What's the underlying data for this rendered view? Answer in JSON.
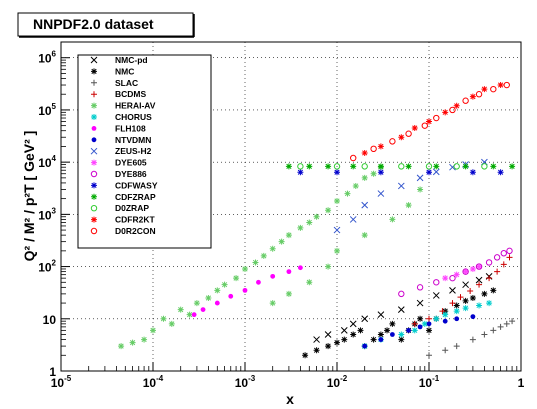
{
  "chart_data": {
    "type": "scatter",
    "title": "NNPDF2.0 dataset",
    "xlabel": "x",
    "ylabel": "Q² / M² / p²T [ GeV² ]",
    "xscale": "log",
    "yscale": "log",
    "xlim": [
      1e-05,
      1
    ],
    "ylim": [
      1,
      2000000
    ],
    "grid": true,
    "legend_position": "top-left",
    "x_ticks": [
      {
        "value": 1e-05,
        "label": "10",
        "exp": "-5"
      },
      {
        "value": 0.0001,
        "label": "10",
        "exp": "-4"
      },
      {
        "value": 0.001,
        "label": "10",
        "exp": "-3"
      },
      {
        "value": 0.01,
        "label": "10",
        "exp": "-2"
      },
      {
        "value": 0.1,
        "label": "10",
        "exp": "-1"
      },
      {
        "value": 1,
        "label": "1",
        "exp": ""
      }
    ],
    "y_ticks": [
      {
        "value": 1,
        "label": "1",
        "exp": ""
      },
      {
        "value": 10,
        "label": "10",
        "exp": ""
      },
      {
        "value": 100,
        "label": "10",
        "exp": "2"
      },
      {
        "value": 1000,
        "label": "10",
        "exp": "3"
      },
      {
        "value": 10000,
        "label": "10",
        "exp": "4"
      },
      {
        "value": 100000,
        "label": "10",
        "exp": "5"
      },
      {
        "value": 1000000,
        "label": "10",
        "exp": "6"
      }
    ],
    "series": [
      {
        "name": "NMC-pd",
        "marker": "x",
        "color": "#000000",
        "points": [
          [
            0.006,
            4
          ],
          [
            0.008,
            5
          ],
          [
            0.012,
            6
          ],
          [
            0.015,
            8
          ],
          [
            0.02,
            10
          ],
          [
            0.03,
            12
          ],
          [
            0.05,
            15
          ],
          [
            0.08,
            20
          ],
          [
            0.12,
            28
          ],
          [
            0.18,
            35
          ],
          [
            0.25,
            45
          ],
          [
            0.35,
            55
          ],
          [
            0.45,
            65
          ]
        ]
      },
      {
        "name": "NMC",
        "marker": "star",
        "color": "#000000",
        "points": [
          [
            0.0045,
            2
          ],
          [
            0.006,
            2.5
          ],
          [
            0.008,
            3
          ],
          [
            0.01,
            3.5
          ],
          [
            0.012,
            4
          ],
          [
            0.015,
            5
          ],
          [
            0.018,
            6
          ],
          [
            0.02,
            3
          ],
          [
            0.025,
            4
          ],
          [
            0.03,
            5
          ],
          [
            0.035,
            6
          ],
          [
            0.04,
            8
          ],
          [
            0.05,
            4
          ],
          [
            0.06,
            6
          ],
          [
            0.07,
            8
          ],
          [
            0.08,
            10
          ],
          [
            0.1,
            6
          ],
          [
            0.12,
            10
          ],
          [
            0.15,
            14
          ],
          [
            0.2,
            18
          ],
          [
            0.25,
            22
          ],
          [
            0.3,
            25
          ],
          [
            0.4,
            30
          ],
          [
            0.5,
            35
          ]
        ]
      },
      {
        "name": "SLAC",
        "marker": "plus",
        "color": "#555555",
        "points": [
          [
            0.1,
            2
          ],
          [
            0.15,
            2.5
          ],
          [
            0.2,
            3
          ],
          [
            0.3,
            4
          ],
          [
            0.4,
            5
          ],
          [
            0.5,
            6
          ],
          [
            0.6,
            7
          ],
          [
            0.7,
            8
          ],
          [
            0.8,
            9
          ]
        ]
      },
      {
        "name": "BCDMS",
        "marker": "plus",
        "color": "#cc0000",
        "points": [
          [
            0.07,
            8
          ],
          [
            0.1,
            10
          ],
          [
            0.14,
            14
          ],
          [
            0.18,
            20
          ],
          [
            0.22,
            26
          ],
          [
            0.28,
            34
          ],
          [
            0.35,
            45
          ],
          [
            0.45,
            60
          ],
          [
            0.55,
            80
          ],
          [
            0.65,
            110
          ],
          [
            0.75,
            150
          ]
        ]
      },
      {
        "name": "HERAI-AV",
        "marker": "star",
        "color": "#66cc66",
        "points": [
          [
            4.5e-05,
            3
          ],
          [
            6e-05,
            3.5
          ],
          [
            8e-05,
            4
          ],
          [
            0.0001,
            6
          ],
          [
            0.00013,
            10
          ],
          [
            0.00016,
            8
          ],
          [
            0.0002,
            15
          ],
          [
            0.00025,
            12
          ],
          [
            0.0003,
            20
          ],
          [
            0.0004,
            25
          ],
          [
            0.0005,
            35
          ],
          [
            0.0006,
            45
          ],
          [
            0.0008,
            60
          ],
          [
            0.001,
            90
          ],
          [
            0.0013,
            120
          ],
          [
            0.0016,
            160
          ],
          [
            0.002,
            220
          ],
          [
            0.0025,
            300
          ],
          [
            0.003,
            400
          ],
          [
            0.004,
            550
          ],
          [
            0.005,
            700
          ],
          [
            0.006,
            900
          ],
          [
            0.008,
            1200
          ],
          [
            0.01,
            1800
          ],
          [
            0.013,
            2500
          ],
          [
            0.016,
            3500
          ],
          [
            0.02,
            5000
          ],
          [
            0.025,
            6000
          ],
          [
            0.03,
            8000
          ],
          [
            0.002,
            20
          ],
          [
            0.003,
            30
          ],
          [
            0.005,
            50
          ],
          [
            0.008,
            100
          ],
          [
            0.01,
            200
          ],
          [
            0.02,
            400
          ],
          [
            0.04,
            800
          ],
          [
            0.06,
            1500
          ],
          [
            0.08,
            3000
          ]
        ]
      },
      {
        "name": "CHORUS",
        "marker": "star",
        "color": "#00cccc",
        "points": [
          [
            0.02,
            3
          ],
          [
            0.03,
            4
          ],
          [
            0.05,
            5
          ],
          [
            0.07,
            6
          ],
          [
            0.09,
            8
          ],
          [
            0.12,
            10
          ],
          [
            0.15,
            12
          ],
          [
            0.2,
            14
          ],
          [
            0.25,
            16
          ],
          [
            0.35,
            18
          ],
          [
            0.45,
            20
          ]
        ]
      },
      {
        "name": "FLH108",
        "marker": "dot",
        "color": "#ff00ff",
        "points": [
          [
            0.00028,
            12
          ],
          [
            0.00035,
            15
          ],
          [
            0.0005,
            20
          ],
          [
            0.0007,
            27
          ],
          [
            0.001,
            35
          ],
          [
            0.0014,
            50
          ],
          [
            0.002,
            65
          ],
          [
            0.003,
            80
          ],
          [
            0.004,
            95
          ]
        ]
      },
      {
        "name": "NTVDMN",
        "marker": "dot",
        "color": "#0000cc",
        "points": [
          [
            0.02,
            3
          ],
          [
            0.03,
            4
          ],
          [
            0.04,
            5
          ],
          [
            0.06,
            6
          ],
          [
            0.08,
            7
          ],
          [
            0.1,
            8
          ],
          [
            0.15,
            9
          ],
          [
            0.2,
            10
          ],
          [
            0.3,
            11
          ]
        ]
      },
      {
        "name": "ZEUS-H2",
        "marker": "x",
        "color": "#3355cc",
        "points": [
          [
            0.01,
            500
          ],
          [
            0.015,
            800
          ],
          [
            0.02,
            1500
          ],
          [
            0.03,
            2500
          ],
          [
            0.05,
            3500
          ],
          [
            0.08,
            5000
          ],
          [
            0.12,
            6500
          ],
          [
            0.18,
            8000
          ],
          [
            0.25,
            9000
          ],
          [
            0.4,
            10000
          ]
        ]
      },
      {
        "name": "DYE605",
        "marker": "star",
        "color": "#ff44ff",
        "points": [
          [
            0.15,
            60
          ],
          [
            0.2,
            70
          ],
          [
            0.25,
            80
          ],
          [
            0.3,
            90
          ],
          [
            0.35,
            100
          ]
        ]
      },
      {
        "name": "DYE886",
        "marker": "circle",
        "color": "#cc00cc",
        "points": [
          [
            0.05,
            30
          ],
          [
            0.08,
            40
          ],
          [
            0.12,
            50
          ],
          [
            0.18,
            60
          ],
          [
            0.25,
            80
          ],
          [
            0.35,
            100
          ],
          [
            0.45,
            120
          ],
          [
            0.55,
            150
          ],
          [
            0.65,
            180
          ],
          [
            0.75,
            200
          ]
        ]
      },
      {
        "name": "CDFWASY",
        "marker": "star",
        "color": "#0000cc",
        "points": [
          [
            0.004,
            6400
          ],
          [
            0.01,
            6400
          ],
          [
            0.03,
            6400
          ],
          [
            0.1,
            6400
          ],
          [
            0.3,
            6400
          ],
          [
            0.6,
            6400
          ]
        ]
      },
      {
        "name": "CDFZRAP",
        "marker": "star",
        "color": "#00aa00",
        "points": [
          [
            0.003,
            8300
          ],
          [
            0.005,
            8300
          ],
          [
            0.008,
            8300
          ],
          [
            0.015,
            8300
          ],
          [
            0.03,
            8300
          ],
          [
            0.06,
            8300
          ],
          [
            0.12,
            8300
          ],
          [
            0.25,
            8300
          ],
          [
            0.5,
            8300
          ],
          [
            0.8,
            8300
          ]
        ]
      },
      {
        "name": "D0ZRAP",
        "marker": "circle",
        "color": "#33cc33",
        "points": [
          [
            0.004,
            8300
          ],
          [
            0.01,
            8300
          ],
          [
            0.02,
            8300
          ],
          [
            0.05,
            8300
          ],
          [
            0.1,
            8300
          ],
          [
            0.2,
            8300
          ],
          [
            0.4,
            8300
          ]
        ]
      },
      {
        "name": "CDFR2KT",
        "marker": "star",
        "color": "#ff0000",
        "points": [
          [
            0.02,
            15000
          ],
          [
            0.03,
            20000
          ],
          [
            0.05,
            30000
          ],
          [
            0.07,
            45000
          ],
          [
            0.1,
            60000
          ],
          [
            0.15,
            90000
          ],
          [
            0.2,
            120000
          ],
          [
            0.3,
            180000
          ],
          [
            0.4,
            250000
          ],
          [
            0.6,
            300000
          ]
        ]
      },
      {
        "name": "D0R2CON",
        "marker": "circle",
        "color": "#ff0000",
        "points": [
          [
            0.015,
            12000
          ],
          [
            0.025,
            18000
          ],
          [
            0.04,
            25000
          ],
          [
            0.06,
            35000
          ],
          [
            0.09,
            50000
          ],
          [
            0.12,
            70000
          ],
          [
            0.18,
            100000
          ],
          [
            0.25,
            150000
          ],
          [
            0.35,
            200000
          ],
          [
            0.5,
            250000
          ],
          [
            0.7,
            300000
          ]
        ]
      }
    ]
  }
}
